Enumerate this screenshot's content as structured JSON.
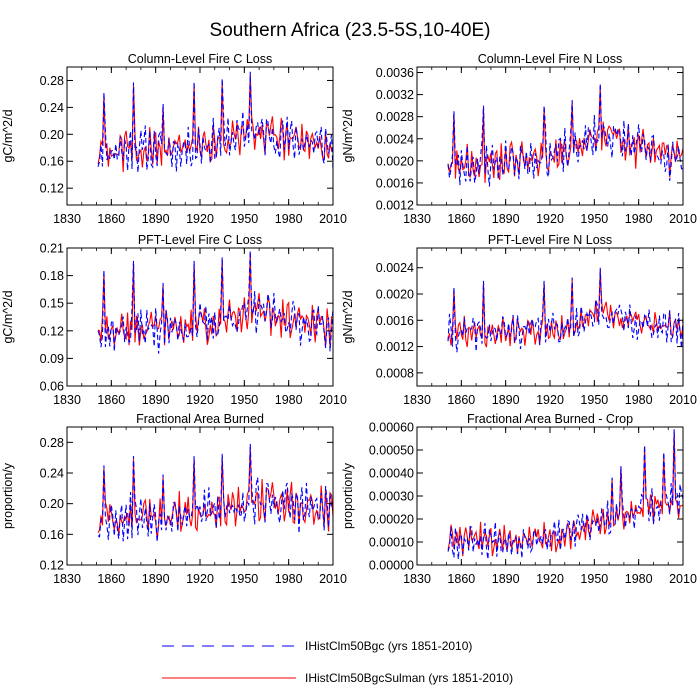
{
  "title": "Southern Africa (23.5-5S,10-40E)",
  "legend": {
    "entries": [
      {
        "label": "IHistClm50Bgc (yrs 1851-2010)",
        "color": "#0000ff",
        "dash": "dashed"
      },
      {
        "label": "IHistClm50BgcSulman (yrs 1851-2010)",
        "color": "#ff0000",
        "dash": "solid"
      }
    ]
  },
  "chart_data": [
    {
      "type": "line",
      "title": "Column-Level Fire C Loss",
      "ylabel": "gC/m^2/d",
      "xlim": [
        1830,
        2010
      ],
      "ylim": [
        0.095,
        0.3
      ],
      "xticks": [
        1830,
        1860,
        1890,
        1920,
        1950,
        1980,
        2010
      ],
      "yticks": [
        0.12,
        0.16,
        0.2,
        0.24,
        0.28
      ],
      "ytick_labels": [
        "0.12",
        "0.16",
        "0.20",
        "0.24",
        "0.28"
      ],
      "gen": {
        "base": [
          0.175,
          0.178,
          0.178,
          0.188,
          0.205,
          0.192,
          0.182
        ],
        "amp": 0.028,
        "spikes": [
          [
            1855,
            0.262
          ],
          [
            1875,
            0.277
          ],
          [
            1895,
            0.245
          ],
          [
            1916,
            0.278
          ],
          [
            1935,
            0.283
          ],
          [
            1954,
            0.293
          ]
        ],
        "seed": 11
      },
      "series": [
        {
          "name": "IHistClm50Bgc",
          "x_start": 1851,
          "x_end": 2010,
          "values_ref": "gen"
        },
        {
          "name": "IHistClm50BgcSulman",
          "x_start": 1851,
          "x_end": 2010,
          "values_ref": "gen"
        }
      ]
    },
    {
      "type": "line",
      "title": "Column-Level Fire N Loss",
      "ylabel": "gN/m^2/d",
      "xlim": [
        1830,
        2010
      ],
      "ylim": [
        0.0012,
        0.0037
      ],
      "xticks": [
        1830,
        1860,
        1890,
        1920,
        1950,
        1980,
        2010
      ],
      "yticks": [
        0.0012,
        0.0016,
        0.002,
        0.0024,
        0.0028,
        0.0032,
        0.0036
      ],
      "ytick_labels": [
        "0.0012",
        "0.0016",
        "0.0020",
        "0.0024",
        "0.0028",
        "0.0032",
        "0.0036"
      ],
      "gen": {
        "base": [
          0.0019,
          0.00195,
          0.00205,
          0.00215,
          0.0025,
          0.0022,
          0.002
        ],
        "amp": 0.00035,
        "spikes": [
          [
            1855,
            0.0029
          ],
          [
            1875,
            0.003
          ],
          [
            1916,
            0.003
          ],
          [
            1935,
            0.0031
          ],
          [
            1954,
            0.0034
          ]
        ],
        "seed": 23
      },
      "series": [
        {
          "name": "IHistClm50Bgc",
          "x_start": 1851,
          "x_end": 2010,
          "values_ref": "gen"
        },
        {
          "name": "IHistClm50BgcSulman",
          "x_start": 1851,
          "x_end": 2010,
          "values_ref": "gen"
        }
      ]
    },
    {
      "type": "line",
      "title": "PFT-Level Fire C Loss",
      "ylabel": "gC/m^2/d",
      "xlim": [
        1830,
        2010
      ],
      "ylim": [
        0.06,
        0.21
      ],
      "xticks": [
        1830,
        1860,
        1890,
        1920,
        1950,
        1980,
        2010
      ],
      "yticks": [
        0.06,
        0.09,
        0.12,
        0.15,
        0.18,
        0.21
      ],
      "ytick_labels": [
        "0.06",
        "0.09",
        "0.12",
        "0.15",
        "0.18",
        "0.21"
      ],
      "gen": {
        "base": [
          0.118,
          0.122,
          0.122,
          0.128,
          0.142,
          0.132,
          0.122
        ],
        "amp": 0.02,
        "spikes": [
          [
            1855,
            0.186
          ],
          [
            1875,
            0.196
          ],
          [
            1895,
            0.172
          ],
          [
            1916,
            0.196
          ],
          [
            1935,
            0.2
          ],
          [
            1954,
            0.207
          ]
        ],
        "seed": 37
      },
      "series": [
        {
          "name": "IHistClm50Bgc",
          "x_start": 1851,
          "x_end": 2010,
          "values_ref": "gen"
        },
        {
          "name": "IHistClm50BgcSulman",
          "x_start": 1851,
          "x_end": 2010,
          "values_ref": "gen"
        }
      ]
    },
    {
      "type": "line",
      "title": "PFT-Level Fire N Loss",
      "ylabel": "gN/m^2/d",
      "xlim": [
        1830,
        2010
      ],
      "ylim": [
        0.0006,
        0.0027
      ],
      "xticks": [
        1830,
        1860,
        1890,
        1920,
        1950,
        1980,
        2010
      ],
      "yticks": [
        0.0008,
        0.0012,
        0.0016,
        0.002,
        0.0024
      ],
      "ytick_labels": [
        "0.0008",
        "0.0012",
        "0.0016",
        "0.0020",
        "0.0024"
      ],
      "gen": {
        "base": [
          0.0014,
          0.00142,
          0.00145,
          0.0015,
          0.0017,
          0.00155,
          0.00145
        ],
        "amp": 0.00022,
        "spikes": [
          [
            1855,
            0.0021
          ],
          [
            1875,
            0.0022
          ],
          [
            1916,
            0.0022
          ],
          [
            1935,
            0.00225
          ],
          [
            1954,
            0.0024
          ]
        ],
        "seed": 41
      },
      "series": [
        {
          "name": "IHistClm50Bgc",
          "x_start": 1851,
          "x_end": 2010,
          "values_ref": "gen"
        },
        {
          "name": "IHistClm50BgcSulman",
          "x_start": 1851,
          "x_end": 2010,
          "values_ref": "gen"
        }
      ]
    },
    {
      "type": "line",
      "title": "Fractional Area Burned",
      "ylabel": "proportion/y",
      "xlim": [
        1830,
        2010
      ],
      "ylim": [
        0.12,
        0.3
      ],
      "xticks": [
        1830,
        1860,
        1890,
        1920,
        1950,
        1980,
        2010
      ],
      "yticks": [
        0.12,
        0.16,
        0.2,
        0.24,
        0.28
      ],
      "ytick_labels": [
        "0.12",
        "0.16",
        "0.20",
        "0.24",
        "0.28"
      ],
      "gen": {
        "base": [
          0.18,
          0.183,
          0.186,
          0.19,
          0.205,
          0.198,
          0.19
        ],
        "amp": 0.027,
        "spikes": [
          [
            1855,
            0.25
          ],
          [
            1875,
            0.262
          ],
          [
            1895,
            0.238
          ],
          [
            1916,
            0.262
          ],
          [
            1935,
            0.265
          ],
          [
            1954,
            0.278
          ]
        ],
        "seed": 53
      },
      "series": [
        {
          "name": "IHistClm50Bgc",
          "x_start": 1851,
          "x_end": 2010,
          "values_ref": "gen"
        },
        {
          "name": "IHistClm50BgcSulman",
          "x_start": 1851,
          "x_end": 2010,
          "values_ref": "gen"
        }
      ]
    },
    {
      "type": "line",
      "title": "Fractional Area Burned - Crop",
      "ylabel": "proportion/y",
      "xlim": [
        1830,
        2010
      ],
      "ylim": [
        0.0,
        0.0006
      ],
      "xticks": [
        1830,
        1860,
        1890,
        1920,
        1950,
        1980,
        2010
      ],
      "yticks": [
        0.0,
        0.0001,
        0.0002,
        0.0003,
        0.0004,
        0.0005,
        0.0006
      ],
      "ytick_labels": [
        "0.00000",
        "0.00010",
        "0.00020",
        "0.00030",
        "0.00040",
        "0.00050",
        "0.00060"
      ],
      "gen": {
        "base": [
          0.00011,
          0.00011,
          0.000115,
          0.00013,
          0.00019,
          0.00025,
          0.00028
        ],
        "amp": 6.5e-05,
        "spikes": [
          [
            1962,
            0.00038
          ],
          [
            1968,
            0.00043
          ],
          [
            1984,
            0.00052
          ],
          [
            1997,
            0.00049
          ],
          [
            2004,
            0.00059
          ]
        ],
        "seed": 67
      },
      "series": [
        {
          "name": "IHistClm50Bgc",
          "x_start": 1851,
          "x_end": 2010,
          "values_ref": "gen"
        },
        {
          "name": "IHistClm50BgcSulman",
          "x_start": 1851,
          "x_end": 2010,
          "values_ref": "gen"
        }
      ]
    }
  ]
}
